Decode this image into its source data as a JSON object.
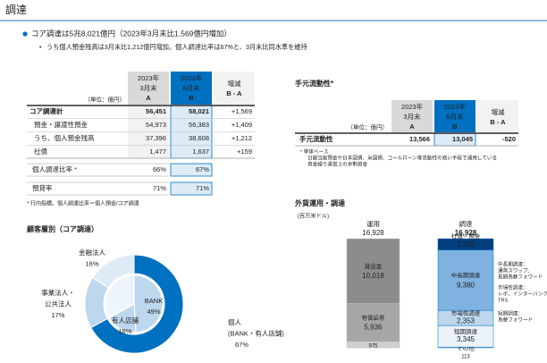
{
  "header": {
    "title": "調達"
  },
  "bullet": "コア調達は5兆8,021億円（2023年3月末比1,569億円増加）",
  "sub_bullet": "うち個人預金残高は3月末比1,212億円増加。個人調達比率は67%と、3月末比同水準を維持",
  "core_table": {
    "unit": "（単位：億円）",
    "columns": [
      [
        "2023年",
        "3月末",
        "A"
      ],
      [
        "2023年",
        "6月末",
        "B"
      ],
      [
        "増減",
        "B - A"
      ]
    ],
    "rows": [
      [
        "コア調達計",
        "56,451",
        "58,021",
        "+1,569"
      ],
      [
        "預金・譲渡性預金",
        "54,973",
        "56,383",
        "+1,409"
      ],
      [
        "うち、個人預金残高",
        "37,396",
        "38,608",
        "+1,212"
      ],
      [
        "社債",
        "1,477",
        "1,637",
        "+159"
      ]
    ],
    "ratio_rows": [
      [
        "個人調達比率 *",
        "66%",
        "67%"
      ],
      [
        "預貸率",
        "71%",
        "71%"
      ]
    ],
    "footnote": "*  行内指標。個人調達比率＝個人預金/コア調達"
  },
  "liquidity_table": {
    "title": "手元流動性*",
    "unit": "（単位：億円）",
    "columns": [
      [
        "2023年",
        "3月末",
        "A"
      ],
      [
        "2023年",
        "6月末",
        "B"
      ],
      [
        "増減",
        "B - A"
      ]
    ],
    "rows": [
      [
        "手元流動性",
        "13,566",
        "13,045",
        "-520"
      ]
    ],
    "footnotes": [
      "*  単体ベース",
      "日銀当座預金や日本国債、米国債、コールローン等流動性の高い手段で運用している",
      "資金繰り運営上の余剰資金"
    ]
  },
  "customer_chart": {
    "title": "顧客層別（コア調達）",
    "outer": [
      {
        "label": [
          "個人",
          "(BANK・有人店舗)"
        ],
        "value": 67,
        "value_label": "67%",
        "color": "#0070c0"
      },
      {
        "label": [
          "事業法人・",
          "公共法人"
        ],
        "value": 17,
        "value_label": "17%",
        "color": "#bdd7ee"
      },
      {
        "label": [
          "金融法人"
        ],
        "value": 16,
        "value_label": "16%",
        "color": "#deebf7"
      }
    ],
    "inner": [
      {
        "label": [
          "BANK"
        ],
        "value": 49,
        "value_label": "49%",
        "color": "#bdd7ee"
      },
      {
        "label": [
          "有人店舗"
        ],
        "value": 18,
        "value_label": "18%",
        "color": "#bdd7ee"
      }
    ]
  },
  "fx_chart": {
    "title": "外貨運用・調達",
    "unit": "(百万米ドル)",
    "bars": [
      {
        "name": "運用",
        "total": "16,928",
        "color": "#808080",
        "segments": [
          {
            "name": "その他",
            "value": 975,
            "value_label": "975",
            "color": "#d0d0d0"
          },
          {
            "name": "有価証券",
            "value": 5936,
            "value_label": "5,936",
            "color": "#a6a6a6"
          },
          {
            "name": "貸出金",
            "value": 10018,
            "value_label": "10,018",
            "color": "#8c8c8c"
          }
        ]
      },
      {
        "name": "調達",
        "total": "16,928",
        "color": "#0070c0",
        "segments": [
          {
            "name": "その他",
            "value": 113,
            "value_label": "113",
            "color": "#ffffff"
          },
          {
            "name": "短期調達",
            "value": 3345,
            "value_label": "3,345",
            "color": "#eaf2fa"
          },
          {
            "name": "市場性調達",
            "value": 2353,
            "value_label": "2,353",
            "color": "#bdd7ee"
          },
          {
            "name": "中長期調達",
            "value": 9380,
            "value_label": "9,380",
            "color": "#7fb2e0"
          },
          {
            "name": "社債・預金",
            "value": 1738,
            "value_label": "1,738",
            "color": "#003e7e"
          }
        ]
      }
    ],
    "notes": [
      [
        "中長期調達：",
        "通貨スワップ、",
        "長期為替フォワード"
      ],
      [
        "市場性調達：",
        "レポ、インターバンク、",
        "TRS"
      ],
      [
        "短期調達：",
        "為替フォワード"
      ]
    ]
  }
}
